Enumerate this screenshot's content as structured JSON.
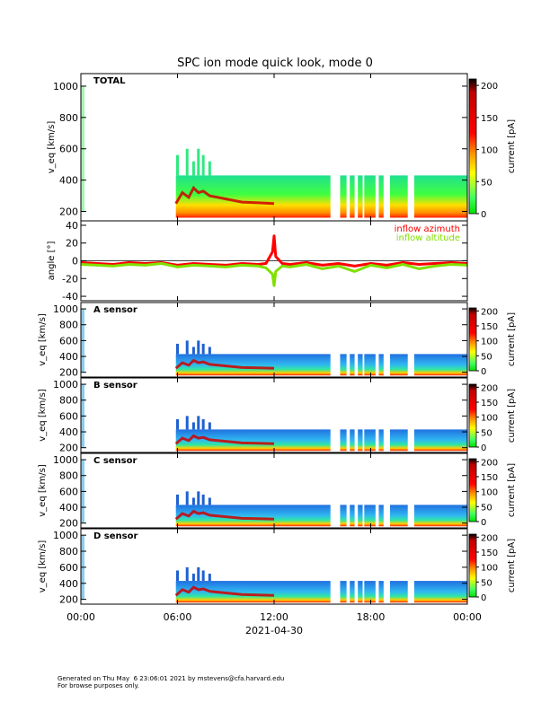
{
  "chart_data": [
    {
      "type": "heatmap",
      "title": "SPC ion mode quick look, mode 0",
      "panel_label": "TOTAL",
      "ylabel": "v_eq [km/s]",
      "yticks": [
        200,
        400,
        600,
        800,
        1000
      ],
      "ylim": [
        140,
        1080
      ],
      "colorbar": {
        "label": "current [pA]",
        "ticks": [
          0,
          50,
          100,
          150,
          200
        ],
        "range": [
          0,
          210
        ],
        "colors": [
          "#00e000",
          "#40ff60",
          "#ffff00",
          "#ff8000",
          "#ff0000",
          "#c00000",
          "#000000"
        ]
      },
      "series": [
        {
          "name": "active signal band (min/max)",
          "x_hours": [
            5.9,
            6.5,
            7.0,
            7.5,
            8.0,
            9.0,
            10.0,
            11.0,
            12.0,
            13.0
          ],
          "v_low": [
            160,
            160,
            160,
            160,
            160,
            160,
            160,
            160,
            160,
            160
          ],
          "v_high": [
            430,
            430,
            430,
            430,
            430,
            430,
            430,
            430,
            430,
            430
          ]
        },
        {
          "name": "peak velocity ridge",
          "x_hours": [
            5.9,
            6.3,
            6.7,
            7.0,
            7.3,
            7.6,
            8.0,
            8.5,
            9.0,
            10.0,
            11.0,
            12.0
          ],
          "values": [
            250,
            320,
            290,
            350,
            320,
            330,
            300,
            290,
            280,
            260,
            255,
            250
          ]
        },
        {
          "name": "spike tops",
          "x_hours": [
            6.0,
            6.6,
            7.0,
            7.3,
            7.6,
            8.0
          ],
          "values": [
            560,
            600,
            520,
            600,
            560,
            520
          ]
        }
      ]
    },
    {
      "type": "line",
      "ylabel": "angle [°]",
      "yticks": [
        -40,
        -20,
        0,
        20,
        40
      ],
      "ylim": [
        -45,
        45
      ],
      "series": [
        {
          "name": "inflow azimuth",
          "color": "#ff0000",
          "x_hours": [
            0,
            1,
            2,
            3,
            4,
            5,
            6,
            7,
            8,
            9,
            10,
            11,
            11.5,
            11.9,
            12.0,
            12.1,
            12.5,
            13,
            14,
            15,
            16,
            17,
            18,
            19,
            20,
            21,
            22,
            23,
            24
          ],
          "values": [
            -2,
            -3,
            -4,
            -2,
            -3,
            -2,
            -5,
            -3,
            -4,
            -5,
            -3,
            -4,
            -3,
            10,
            28,
            5,
            -3,
            -4,
            -2,
            -5,
            -3,
            -6,
            -3,
            -5,
            -2,
            -4,
            -3,
            -2,
            -3
          ]
        },
        {
          "name": "inflow altitude",
          "color": "#80e000",
          "x_hours": [
            0,
            1,
            2,
            3,
            4,
            5,
            6,
            7,
            8,
            9,
            10,
            11,
            11.5,
            11.9,
            12.0,
            12.1,
            12.5,
            13,
            14,
            15,
            16,
            17,
            18,
            19,
            20,
            21,
            22,
            23,
            24
          ],
          "values": [
            -4,
            -5,
            -6,
            -4,
            -5,
            -3,
            -7,
            -5,
            -6,
            -7,
            -5,
            -6,
            -8,
            -15,
            -28,
            -12,
            -6,
            -7,
            -4,
            -9,
            -6,
            -12,
            -5,
            -8,
            -4,
            -9,
            -6,
            -4,
            -5
          ]
        }
      ]
    },
    {
      "type": "heatmap",
      "panel_label": "A sensor",
      "ylabel": "v_eq [km/s]",
      "yticks": [
        200,
        400,
        600,
        800,
        1000
      ],
      "ylim": [
        140,
        1080
      ],
      "colorbar": {
        "label": "current [pA]",
        "ticks": [
          0,
          50,
          100,
          150,
          200
        ],
        "range": [
          0,
          210
        ]
      }
    },
    {
      "type": "heatmap",
      "panel_label": "B sensor",
      "ylabel": "v_eq [km/s]",
      "yticks": [
        200,
        400,
        600,
        800,
        1000
      ],
      "ylim": [
        140,
        1080
      ],
      "colorbar": {
        "label": "current [pA]",
        "ticks": [
          0,
          50,
          100,
          150,
          200
        ],
        "range": [
          0,
          210
        ]
      }
    },
    {
      "type": "heatmap",
      "panel_label": "C sensor",
      "ylabel": "v_eq [km/s]",
      "yticks": [
        200,
        400,
        600,
        800,
        1000
      ],
      "ylim": [
        140,
        1080
      ],
      "colorbar": {
        "label": "current [pA]",
        "ticks": [
          0,
          50,
          100,
          150,
          200
        ],
        "range": [
          0,
          210
        ]
      }
    },
    {
      "type": "heatmap",
      "panel_label": "D sensor",
      "ylabel": "v_eq [km/s]",
      "yticks": [
        200,
        400,
        600,
        800,
        1000
      ],
      "ylim": [
        140,
        1080
      ],
      "colorbar": {
        "label": "current [pA]",
        "ticks": [
          0,
          50,
          100,
          150,
          200
        ],
        "range": [
          0,
          210
        ]
      }
    }
  ],
  "x_axis": {
    "ticks_hours": [
      0,
      6,
      12,
      18,
      24
    ],
    "tick_labels": [
      "00:00",
      "06:00",
      "12:00",
      "18:00",
      "00:00"
    ],
    "xlim": [
      0,
      24
    ],
    "date_label": "2021-04-30"
  },
  "data_gaps_hours": [
    [
      15.5,
      16.1
    ],
    [
      16.5,
      16.7
    ],
    [
      17.0,
      17.2
    ],
    [
      17.5,
      17.6
    ],
    [
      18.3,
      18.5
    ],
    [
      18.8,
      19.2
    ],
    [
      20.3,
      20.7
    ]
  ],
  "footer": {
    "line1": "Generated on Thu May  6 23:06:01 2021 by mstevens@cfa.harvard.edu",
    "line2": "For browse purposes only."
  }
}
